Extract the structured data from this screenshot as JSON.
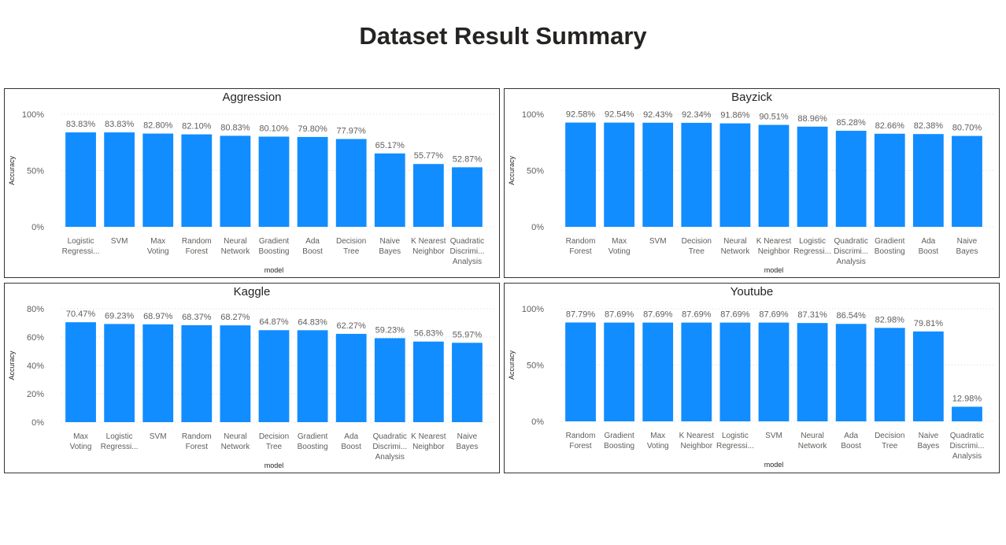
{
  "page": {
    "title": "Dataset Result Summary"
  },
  "chart_data": [
    {
      "type": "bar",
      "title": "Aggression",
      "xlabel": "model",
      "ylabel": "Accuracy",
      "ylim": [
        0,
        100
      ],
      "yticks": [
        "0%",
        "50%",
        "100%"
      ],
      "grid": true,
      "color": "#118dff",
      "categories": [
        [
          "Logistic",
          "Regressi..."
        ],
        [
          "SVM"
        ],
        [
          "Max",
          "Voting"
        ],
        [
          "Random",
          "Forest"
        ],
        [
          "Neural",
          "Network"
        ],
        [
          "Gradient",
          "Boosting"
        ],
        [
          "Ada",
          "Boost"
        ],
        [
          "Decision",
          "Tree"
        ],
        [
          "Naive",
          "Bayes"
        ],
        [
          "K Nearest",
          "Neighbor"
        ],
        [
          "Quadratic",
          "Discrimi...",
          "Analysis"
        ]
      ],
      "values": [
        83.83,
        83.83,
        82.8,
        82.1,
        80.83,
        80.1,
        79.8,
        77.97,
        65.17,
        55.77,
        52.87
      ],
      "labels": [
        "83.83%",
        "83.83%",
        "82.80%",
        "82.10%",
        "80.83%",
        "80.10%",
        "79.80%",
        "77.97%",
        "65.17%",
        "55.77%",
        "52.87%"
      ]
    },
    {
      "type": "bar",
      "title": "Bayzick",
      "xlabel": "model",
      "ylabel": "Accuracy",
      "ylim": [
        0,
        100
      ],
      "yticks": [
        "0%",
        "50%",
        "100%"
      ],
      "grid": true,
      "color": "#118dff",
      "categories": [
        [
          "Random",
          "Forest"
        ],
        [
          "Max",
          "Voting"
        ],
        [
          "SVM"
        ],
        [
          "Decision",
          "Tree"
        ],
        [
          "Neural",
          "Network"
        ],
        [
          "K Nearest",
          "Neighbor"
        ],
        [
          "Logistic",
          "Regressi..."
        ],
        [
          "Quadratic",
          "Discrimi...",
          "Analysis"
        ],
        [
          "Gradient",
          "Boosting"
        ],
        [
          "Ada",
          "Boost"
        ],
        [
          "Naive",
          "Bayes"
        ]
      ],
      "values": [
        92.58,
        92.54,
        92.43,
        92.34,
        91.86,
        90.51,
        88.96,
        85.28,
        82.66,
        82.38,
        80.7
      ],
      "labels": [
        "92.58%",
        "92.54%",
        "92.43%",
        "92.34%",
        "91.86%",
        "90.51%",
        "88.96%",
        "85.28%",
        "82.66%",
        "82.38%",
        "80.70%"
      ]
    },
    {
      "type": "bar",
      "title": "Kaggle",
      "xlabel": "model",
      "ylabel": "Accuracy",
      "ylim": [
        0,
        80
      ],
      "yticks": [
        "0%",
        "20%",
        "40%",
        "60%",
        "80%"
      ],
      "grid": true,
      "color": "#118dff",
      "categories": [
        [
          "Max",
          "Voting"
        ],
        [
          "Logistic",
          "Regressi..."
        ],
        [
          "SVM"
        ],
        [
          "Random",
          "Forest"
        ],
        [
          "Neural",
          "Network"
        ],
        [
          "Decision",
          "Tree"
        ],
        [
          "Gradient",
          "Boosting"
        ],
        [
          "Ada",
          "Boost"
        ],
        [
          "Quadratic",
          "Discrimi...",
          "Analysis"
        ],
        [
          "K Nearest",
          "Neighbor"
        ],
        [
          "Naive",
          "Bayes"
        ]
      ],
      "values": [
        70.47,
        69.23,
        68.97,
        68.37,
        68.27,
        64.87,
        64.83,
        62.27,
        59.23,
        56.83,
        55.97
      ],
      "labels": [
        "70.47%",
        "69.23%",
        "68.97%",
        "68.37%",
        "68.27%",
        "64.87%",
        "64.83%",
        "62.27%",
        "59.23%",
        "56.83%",
        "55.97%"
      ]
    },
    {
      "type": "bar",
      "title": "Youtube",
      "xlabel": "model",
      "ylabel": "Accuracy",
      "ylim": [
        0,
        100
      ],
      "yticks": [
        "0%",
        "50%",
        "100%"
      ],
      "grid": true,
      "color": "#118dff",
      "categories": [
        [
          "Random",
          "Forest"
        ],
        [
          "Gradient",
          "Boosting"
        ],
        [
          "Max",
          "Voting"
        ],
        [
          "K Nearest",
          "Neighbor"
        ],
        [
          "Logistic",
          "Regressi..."
        ],
        [
          "SVM"
        ],
        [
          "Neural",
          "Network"
        ],
        [
          "Ada",
          "Boost"
        ],
        [
          "Decision",
          "Tree"
        ],
        [
          "Naive",
          "Bayes"
        ],
        [
          "Quadratic",
          "Discrimi...",
          "Analysis"
        ]
      ],
      "values": [
        87.79,
        87.69,
        87.69,
        87.69,
        87.69,
        87.69,
        87.31,
        86.54,
        82.98,
        79.81,
        12.98
      ],
      "labels": [
        "87.79%",
        "87.69%",
        "87.69%",
        "87.69%",
        "87.69%",
        "87.69%",
        "87.31%",
        "86.54%",
        "82.98%",
        "79.81%",
        "12.98%"
      ]
    }
  ]
}
